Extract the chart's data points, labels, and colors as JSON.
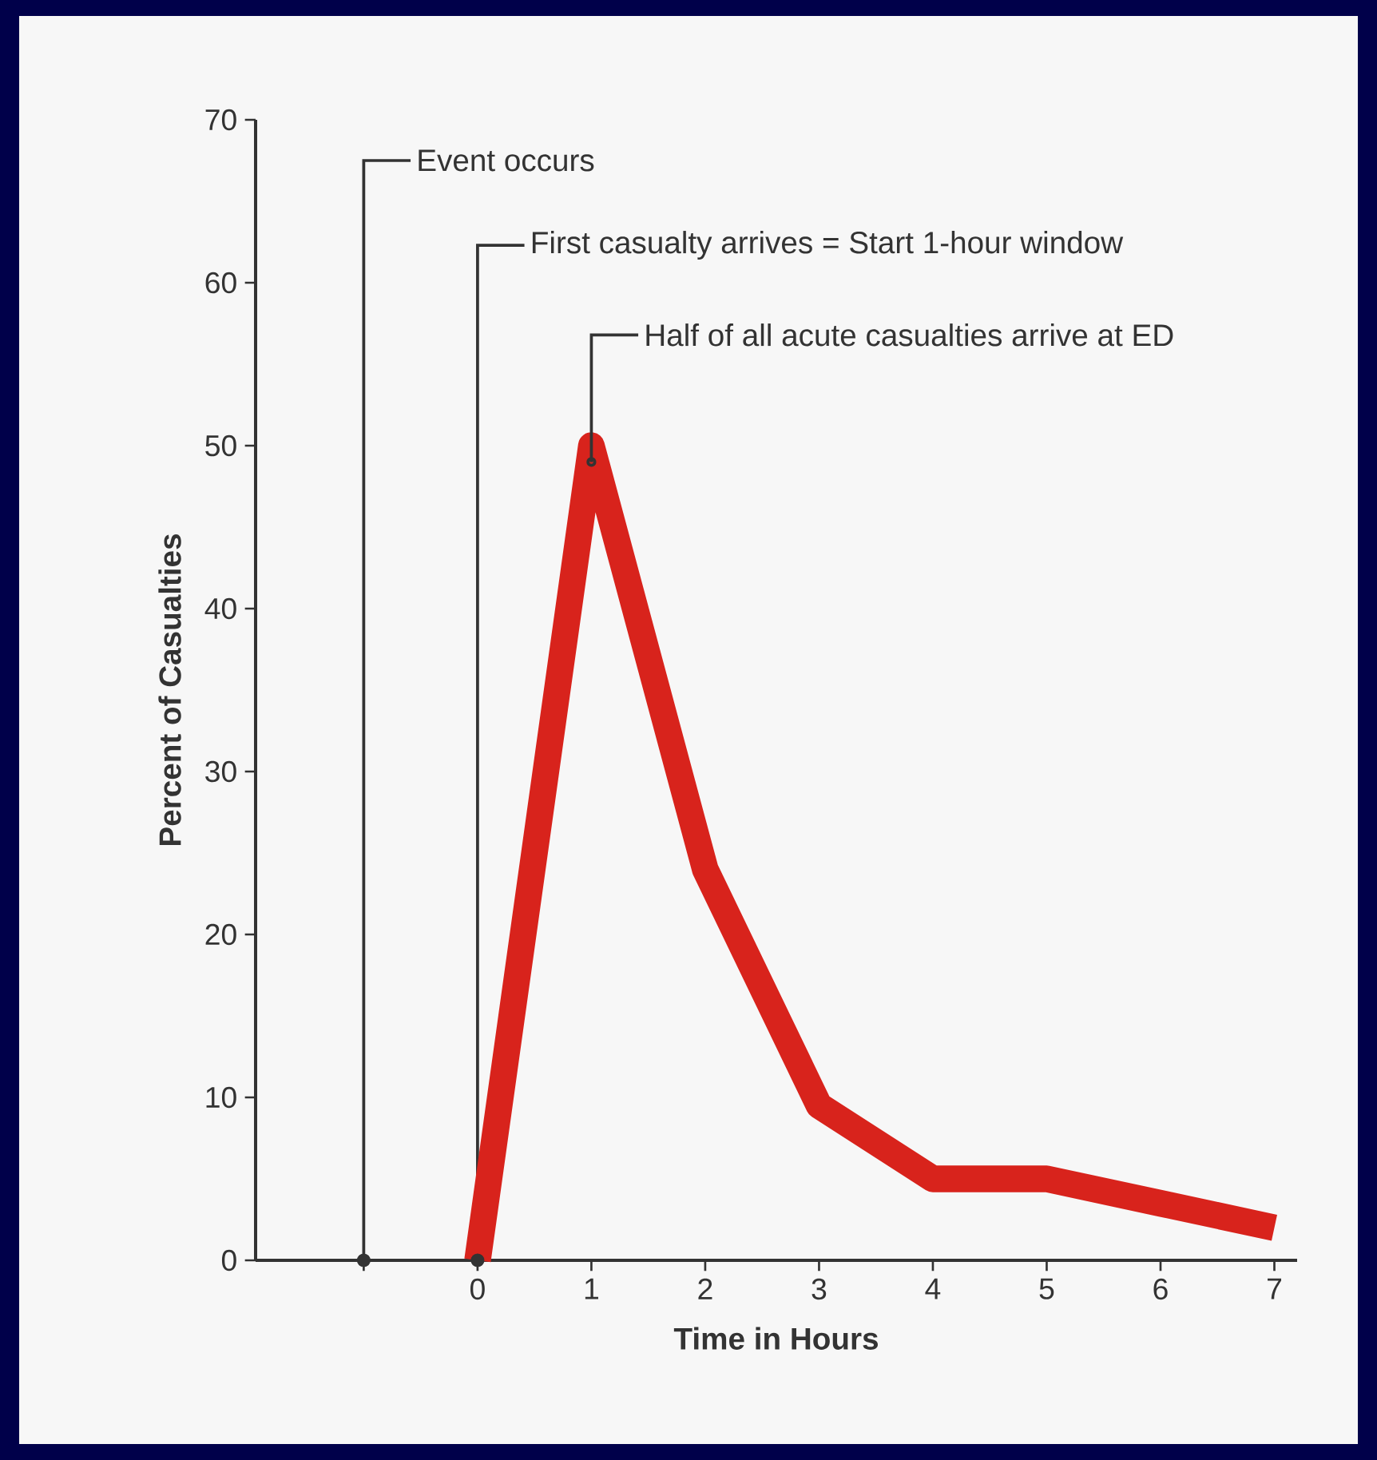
{
  "chart_data": {
    "type": "line",
    "xlabel": "Time in Hours",
    "ylabel": "Percent of Casualties",
    "series": [
      {
        "x": [
          0,
          1,
          2,
          3,
          4,
          5,
          6,
          7
        ],
        "values": [
          0,
          50,
          24,
          9.5,
          5,
          5,
          3.5,
          2
        ],
        "color": "#d8231c"
      },
      {
        "type": "scatter",
        "x": [
          -1,
          0
        ],
        "values": [
          0,
          0
        ],
        "color": "#333333",
        "marker": "circle"
      }
    ],
    "xlim": [
      -1.95,
      7.2
    ],
    "ylim": [
      0,
      70
    ],
    "xticks": [
      {
        "value": -1,
        "label": null
      },
      0,
      1,
      2,
      3,
      4,
      5,
      6,
      7
    ],
    "yticks": [
      0,
      10,
      20,
      30,
      40,
      50,
      60,
      70
    ],
    "ref_lines": [
      {
        "axis": "x",
        "value": -1,
        "label": "Event occurs"
      },
      {
        "axis": "x",
        "value": 0,
        "label": "First casualty arrives = Start 1-hour window"
      }
    ],
    "annotations": [
      {
        "text": "Half of all acute casualties arrive at ED",
        "x": 1,
        "y": 49
      }
    ]
  }
}
